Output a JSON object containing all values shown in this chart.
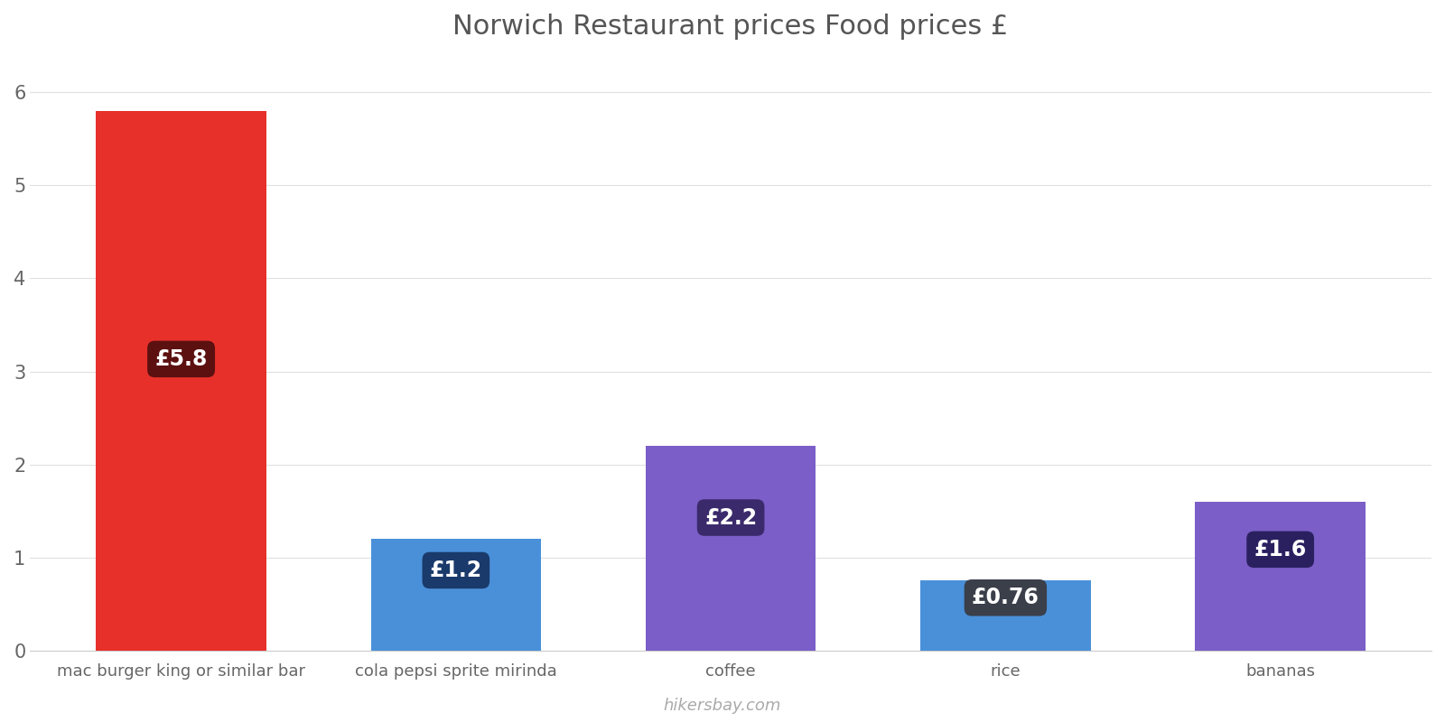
{
  "categories": [
    "mac burger king or similar bar",
    "cola pepsi sprite mirinda",
    "coffee",
    "rice",
    "bananas"
  ],
  "values": [
    5.8,
    1.2,
    2.2,
    0.76,
    1.6
  ],
  "bar_colors": [
    "#e8302a",
    "#4a90d9",
    "#7b5ec7",
    "#4a90d9",
    "#7b5ec7"
  ],
  "label_bg_colors": [
    "#5c1010",
    "#1a3a6b",
    "#3b2a6b",
    "#3a3f4a",
    "#2a2060"
  ],
  "labels": [
    "£5.8",
    "£1.2",
    "£2.2",
    "£0.76",
    "£1.6"
  ],
  "title": "Norwich Restaurant prices Food prices £",
  "title_fontsize": 22,
  "label_fontsize": 17,
  "tick_fontsize": 15,
  "xlabel_fontsize": 13,
  "ylim": [
    0,
    6.35
  ],
  "yticks": [
    0,
    1,
    2,
    3,
    4,
    5,
    6
  ],
  "background_color": "#ffffff",
  "watermark": "hikersbay.com",
  "bar_width": 0.62
}
